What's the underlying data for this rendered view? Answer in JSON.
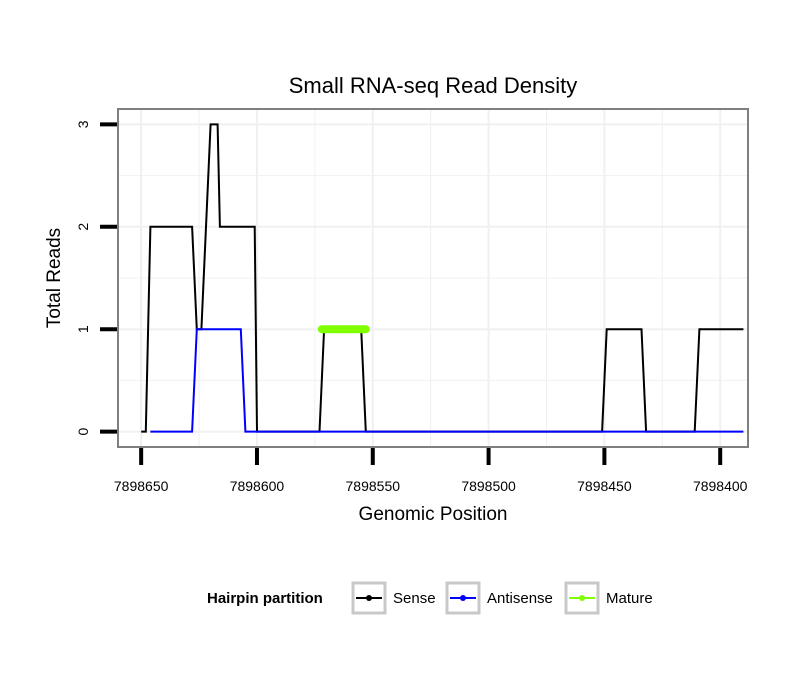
{
  "chart_data": {
    "type": "line",
    "title": "Small RNA-seq Read Density",
    "xlabel": "Genomic Position",
    "ylabel": "Total Reads",
    "x_reversed": true,
    "xlim": [
      7898660,
      7898388
    ],
    "ylim": [
      -0.15,
      3.15
    ],
    "x_ticks": [
      7898650,
      7898600,
      7898550,
      7898500,
      7898450,
      7898400
    ],
    "x_tick_labels": [
      "7898650",
      "7898600",
      "7898550",
      "7898500",
      "7898450",
      "7898400"
    ],
    "y_ticks": [
      0,
      1,
      2,
      3
    ],
    "y_tick_labels": [
      "0",
      "1",
      "2",
      "3"
    ],
    "grid": true,
    "legend": {
      "title": "Hairpin partition",
      "position": "bottom",
      "entries": [
        "Sense",
        "Antisense",
        "Mature"
      ]
    },
    "series": [
      {
        "name": "Sense",
        "color": "#000000",
        "x": [
          7898650,
          7898648,
          7898646,
          7898628,
          7898626,
          7898624,
          7898620,
          7898618,
          7898617,
          7898616,
          7898614,
          7898612,
          7898610,
          7898605,
          7898601,
          7898600,
          7898573,
          7898571,
          7898555,
          7898553,
          7898451,
          7898449,
          7898434,
          7898432,
          7898411,
          7898409,
          7898390
        ],
        "y": [
          0,
          0,
          2,
          2,
          1,
          1,
          3,
          3,
          3,
          2,
          2,
          2,
          2,
          2,
          2,
          0,
          0,
          1,
          1,
          0,
          0,
          1,
          1,
          0,
          0,
          1,
          1
        ]
      },
      {
        "name": "Antisense",
        "color": "#0000ff",
        "x": [
          7898646,
          7898628,
          7898626,
          7898607,
          7898605,
          7898390
        ],
        "y": [
          0,
          0,
          1,
          1,
          0,
          0
        ]
      },
      {
        "name": "Mature",
        "color": "#7fff00",
        "x": [
          7898572,
          7898553
        ],
        "y": [
          1,
          1
        ]
      }
    ]
  }
}
